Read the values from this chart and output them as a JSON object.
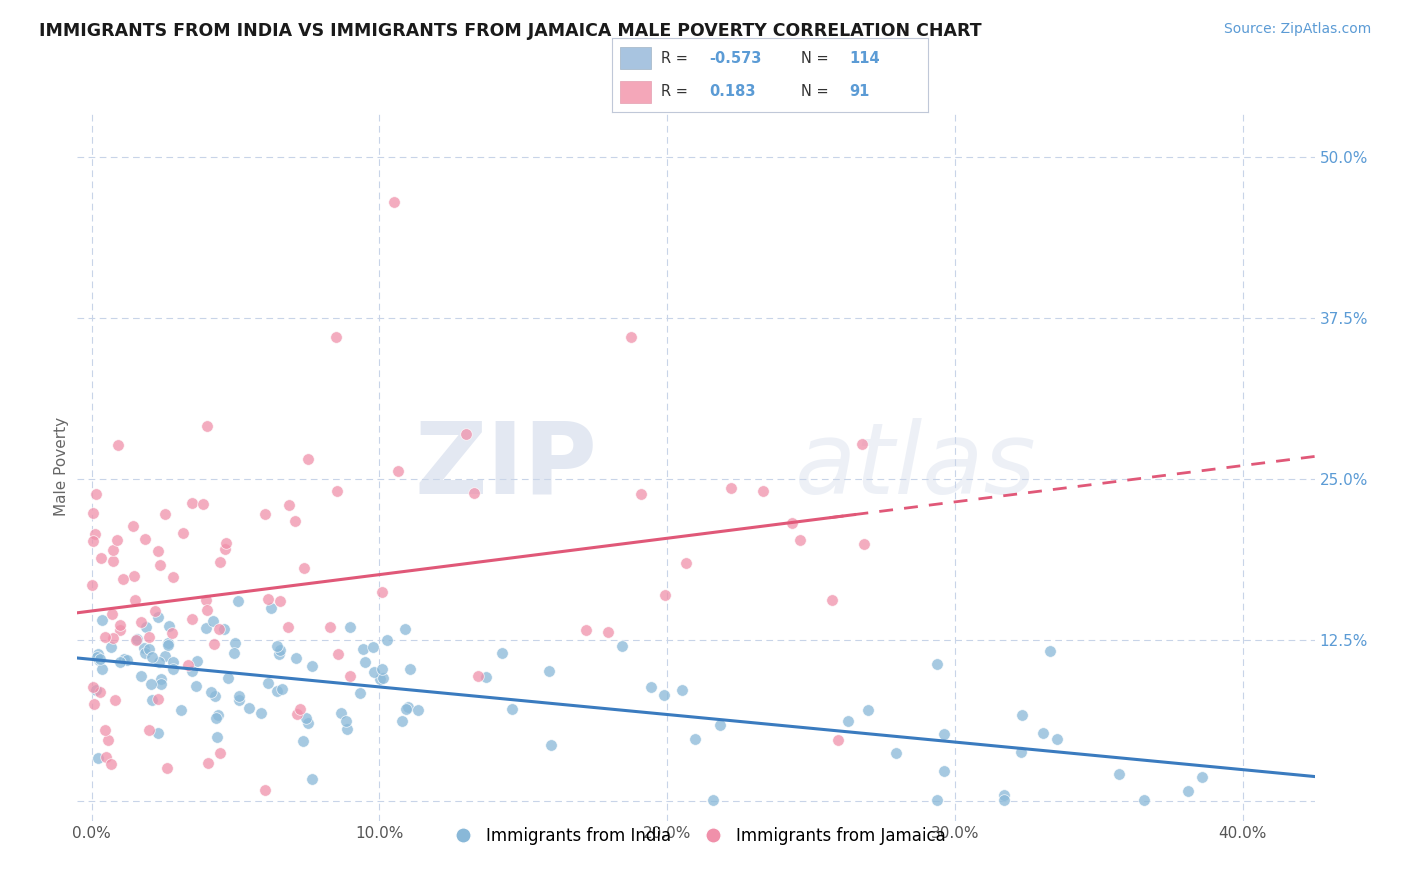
{
  "title": "IMMIGRANTS FROM INDIA VS IMMIGRANTS FROM JAMAICA MALE POVERTY CORRELATION CHART",
  "source": "Source: ZipAtlas.com",
  "ylabel": "Male Poverty",
  "x_ticks": [
    0.0,
    0.1,
    0.2,
    0.3,
    0.4
  ],
  "x_tick_labels": [
    "0.0%",
    "10.0%",
    "20.0%",
    "30.0%",
    "40.0%"
  ],
  "y_ticks": [
    0.0,
    0.125,
    0.25,
    0.375,
    0.5
  ],
  "y_tick_labels": [
    "",
    "12.5%",
    "25.0%",
    "37.5%",
    "50.0%"
  ],
  "xlim": [
    -0.005,
    0.425
  ],
  "ylim": [
    -0.015,
    0.535
  ],
  "india_legend_color": "#a8c4e0",
  "jamaica_legend_color": "#f4a7b9",
  "india_scatter_color": "#89b8d8",
  "jamaica_scatter_color": "#f090aa",
  "india_line_color": "#3a7bbf",
  "jamaica_line_color": "#e05878",
  "india_R": -0.573,
  "india_N": 114,
  "jamaica_R": 0.183,
  "jamaica_N": 91,
  "legend_india_label": "Immigrants from India",
  "legend_jamaica_label": "Immigrants from Jamaica",
  "watermark_zip": "ZIP",
  "watermark_atlas": "atlas",
  "background_color": "#ffffff",
  "grid_color": "#c8d4e8",
  "title_fontsize": 12.5,
  "source_fontsize": 10,
  "tick_fontsize": 11,
  "ylabel_fontsize": 11
}
